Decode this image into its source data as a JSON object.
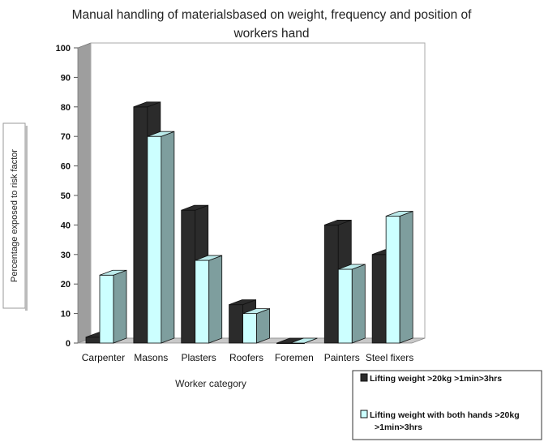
{
  "chart_data": {
    "type": "bar",
    "title_lines": [
      "Manual handling of materialsbased on weight, frequency and position of",
      "workers hand"
    ],
    "xlabel": "Worker category",
    "ylabel": "Percentage exposed to risk factor",
    "ylim": [
      0,
      100
    ],
    "yticks": [
      "0",
      "10",
      "20",
      "30",
      "40",
      "50",
      "60",
      "70",
      "80",
      "90",
      "100"
    ],
    "categories": [
      "Carpenter",
      "Masons",
      "Plasters",
      "Roofers",
      "Foremen",
      "Painters",
      "Steel fixers"
    ],
    "series": [
      {
        "name": "Lifting weight >20kg >1min>3hrs",
        "legend_lines": [
          "Lifting weight >20kg >1min>3hrs"
        ],
        "color": "#2b2b2b",
        "values": [
          2,
          80,
          45,
          13,
          0,
          40,
          30
        ]
      },
      {
        "name": "Lifting weight with both hands >20kg >1min>3hrs",
        "legend_lines": [
          "Lifting weight with both hands >20kg",
          ">1min>3hrs"
        ],
        "color": "#ccffff",
        "values": [
          23,
          70,
          28,
          10,
          0,
          25,
          43
        ]
      }
    ],
    "grid": false,
    "legend_position": "bottom-right",
    "style": "3d-column"
  }
}
